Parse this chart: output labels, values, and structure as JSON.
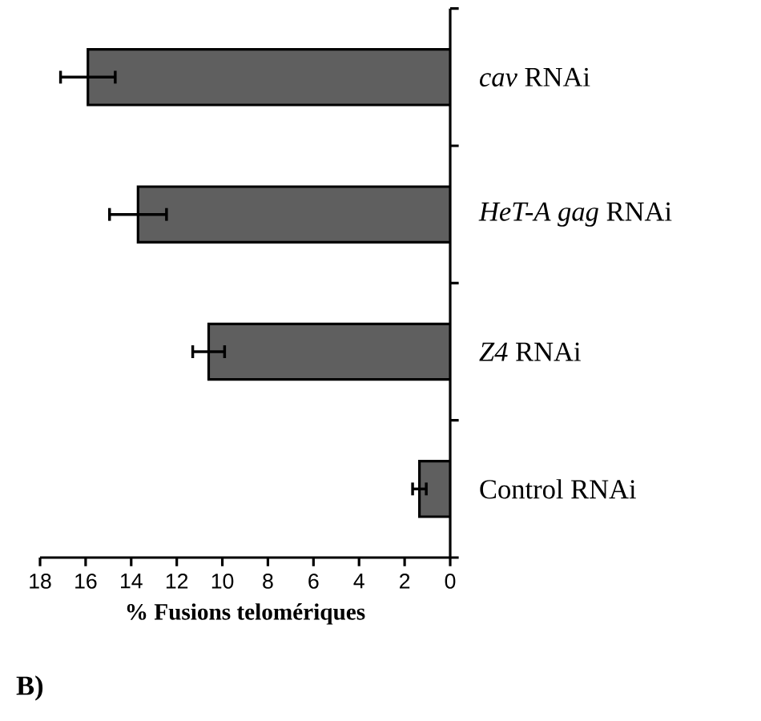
{
  "chart_data": {
    "type": "bar",
    "orientation": "horizontal",
    "categories": [
      "*cav* RNAi",
      "*HeT-A gag* RNAi",
      "*Z4* RNAi",
      "Control RNAi"
    ],
    "values": [
      15.9,
      13.7,
      10.6,
      1.35
    ],
    "errors": [
      1.2,
      1.25,
      0.7,
      0.3
    ],
    "color": "#5f5f5f",
    "xlabel": "% Fusions telomériques",
    "xlim": [
      18,
      0
    ],
    "xticks": [
      0,
      2,
      4,
      6,
      8,
      10,
      12,
      14,
      16,
      18
    ],
    "annotations": [
      "B)"
    ],
    "grid": false
  }
}
